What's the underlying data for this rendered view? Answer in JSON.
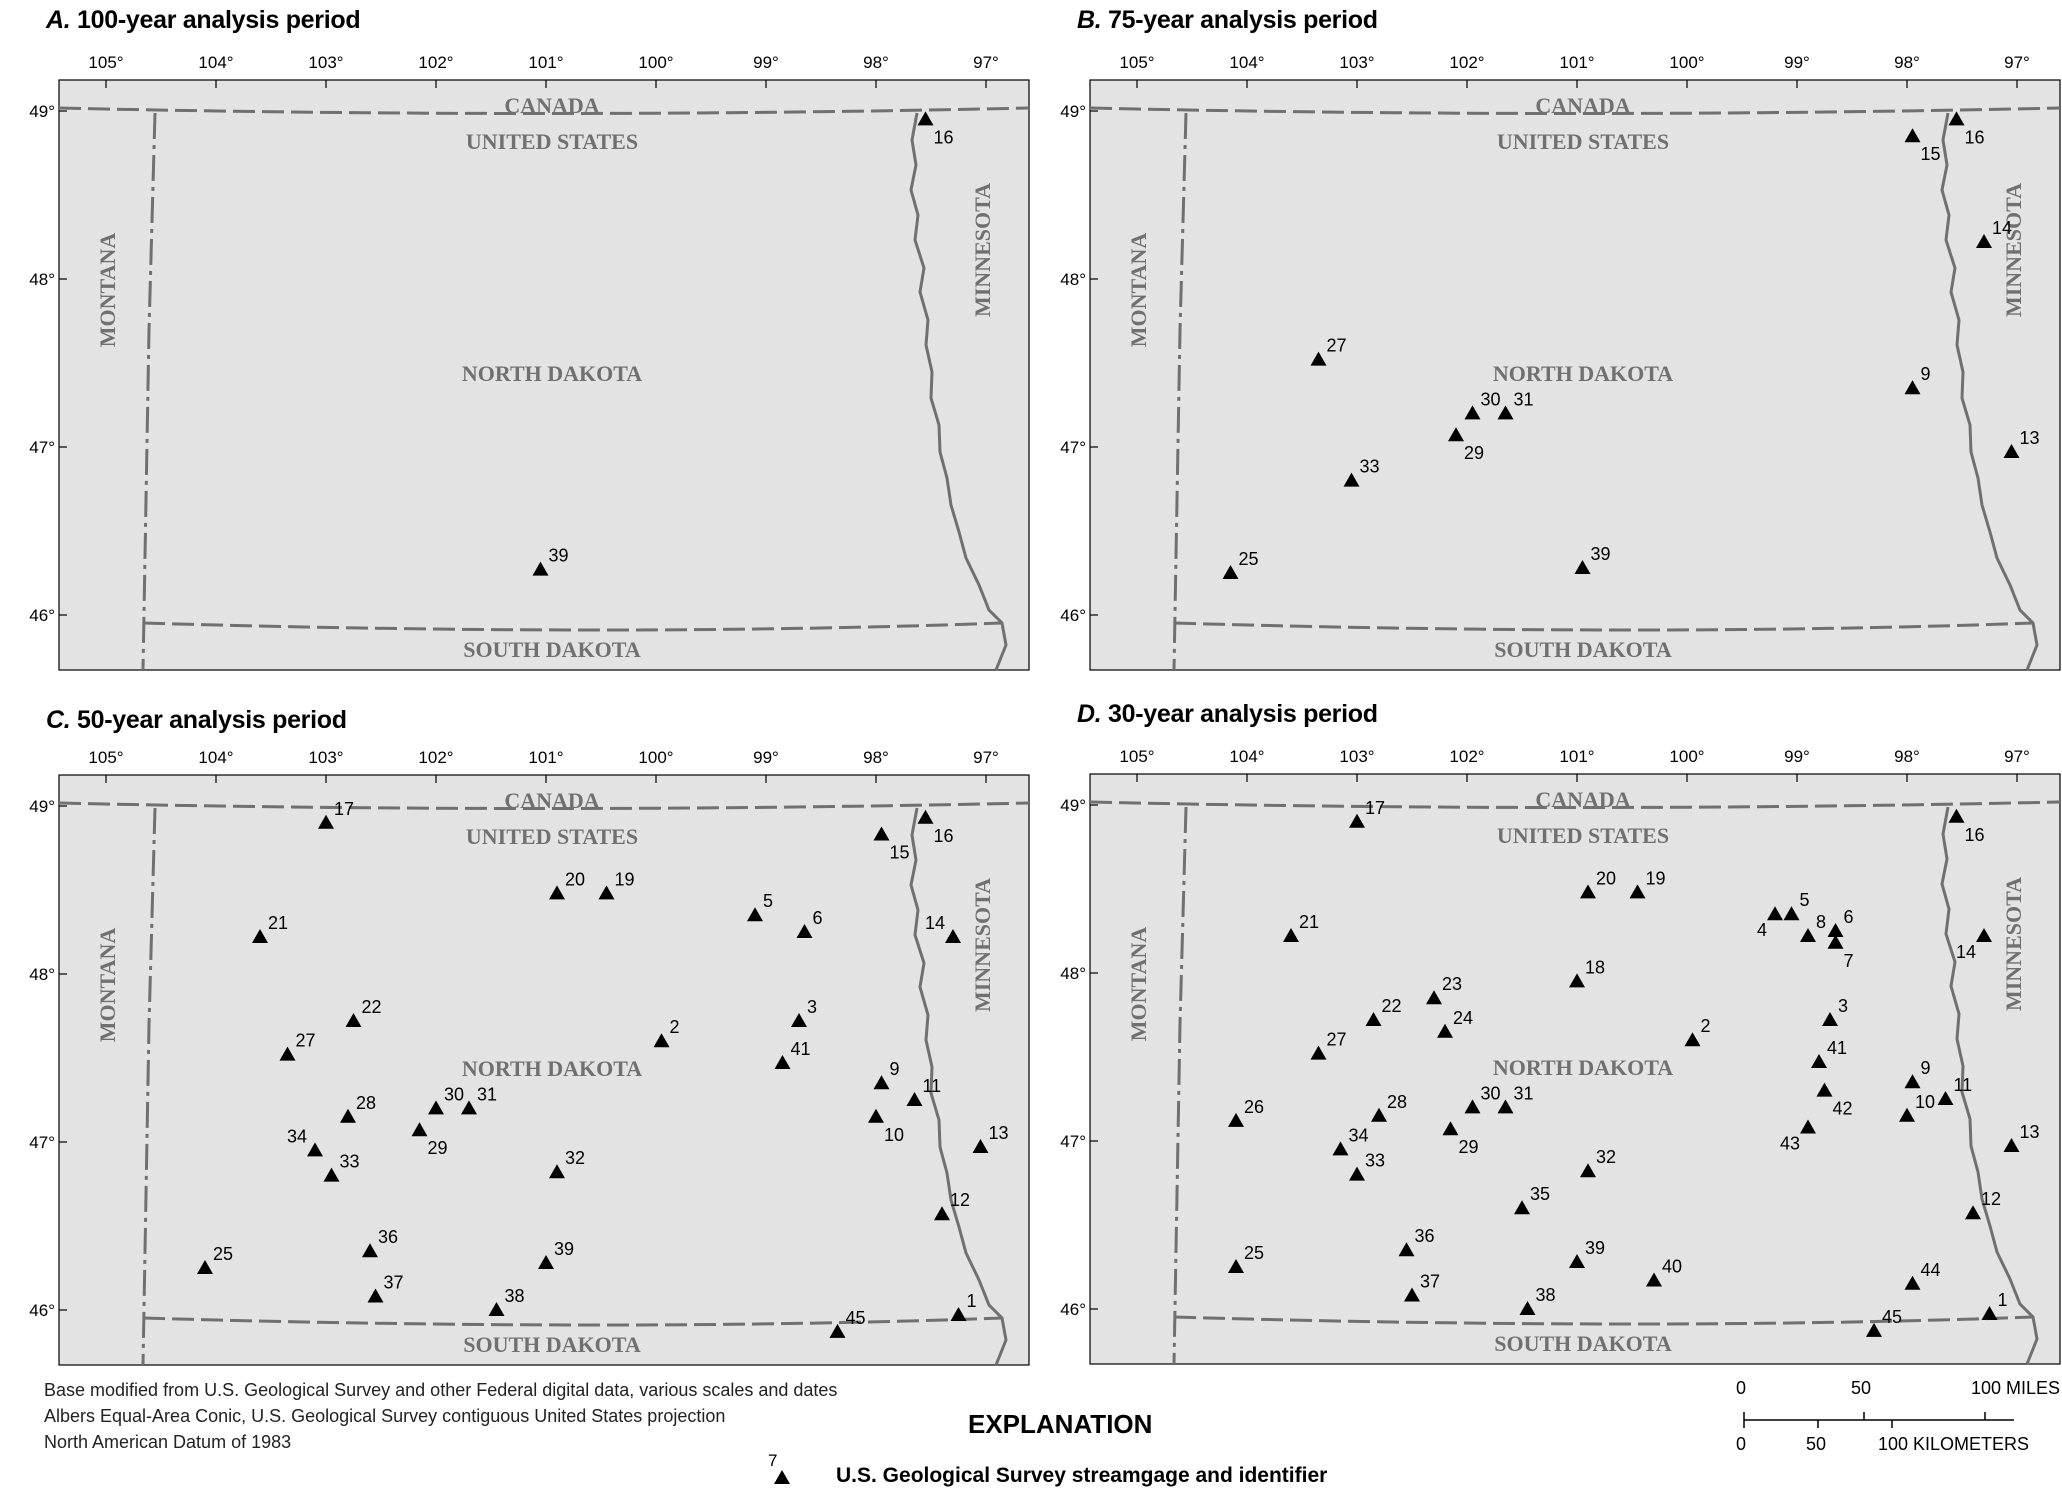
{
  "panels": [
    {
      "letter": "A.",
      "title": "100-year analysis period",
      "gages": [
        {
          "id": "16",
          "lon": -97.55,
          "lat": 48.95,
          "lab": "se"
        },
        {
          "id": "39",
          "lon": -101.05,
          "lat": 46.27,
          "lab": "ne"
        }
      ]
    },
    {
      "letter": "B.",
      "title": "75-year analysis period",
      "gages": [
        {
          "id": "15",
          "lon": -97.95,
          "lat": 48.85,
          "lab": "se"
        },
        {
          "id": "16",
          "lon": -97.55,
          "lat": 48.95,
          "lab": "se"
        },
        {
          "id": "14",
          "lon": -97.3,
          "lat": 48.22,
          "lab": "ne"
        },
        {
          "id": "27",
          "lon": -103.35,
          "lat": 47.52,
          "lab": "ne"
        },
        {
          "id": "9",
          "lon": -97.95,
          "lat": 47.35,
          "lab": "ne"
        },
        {
          "id": "30",
          "lon": -101.95,
          "lat": 47.2,
          "lab": "ne"
        },
        {
          "id": "31",
          "lon": -101.65,
          "lat": 47.2,
          "lab": "ne"
        },
        {
          "id": "29",
          "lon": -102.1,
          "lat": 47.07,
          "lab": "se"
        },
        {
          "id": "13",
          "lon": -97.05,
          "lat": 46.97,
          "lab": "ne"
        },
        {
          "id": "33",
          "lon": -103.05,
          "lat": 46.8,
          "lab": "ne"
        },
        {
          "id": "25",
          "lon": -104.15,
          "lat": 46.25,
          "lab": "ne"
        },
        {
          "id": "39",
          "lon": -100.95,
          "lat": 46.28,
          "lab": "ne"
        }
      ]
    },
    {
      "letter": "C.",
      "title": "50-year analysis period",
      "gages": [
        {
          "id": "17",
          "lon": -103.0,
          "lat": 48.9,
          "lab": "ne"
        },
        {
          "id": "15",
          "lon": -97.95,
          "lat": 48.83,
          "lab": "se"
        },
        {
          "id": "16",
          "lon": -97.55,
          "lat": 48.93,
          "lab": "se"
        },
        {
          "id": "20",
          "lon": -100.9,
          "lat": 48.48,
          "lab": "ne"
        },
        {
          "id": "19",
          "lon": -100.45,
          "lat": 48.48,
          "lab": "ne"
        },
        {
          "id": "5",
          "lon": -99.1,
          "lat": 48.35,
          "lab": "ne"
        },
        {
          "id": "6",
          "lon": -98.65,
          "lat": 48.25,
          "lab": "ne"
        },
        {
          "id": "14",
          "lon": -97.3,
          "lat": 48.22,
          "lab": "nw"
        },
        {
          "id": "21",
          "lon": -103.6,
          "lat": 48.22,
          "lab": "ne"
        },
        {
          "id": "22",
          "lon": -102.75,
          "lat": 47.72,
          "lab": "ne"
        },
        {
          "id": "2",
          "lon": -99.95,
          "lat": 47.6,
          "lab": "ne"
        },
        {
          "id": "3",
          "lon": -98.7,
          "lat": 47.72,
          "lab": "ne"
        },
        {
          "id": "27",
          "lon": -103.35,
          "lat": 47.52,
          "lab": "ne"
        },
        {
          "id": "41",
          "lon": -98.85,
          "lat": 47.47,
          "lab": "ne"
        },
        {
          "id": "9",
          "lon": -97.95,
          "lat": 47.35,
          "lab": "ne"
        },
        {
          "id": "11",
          "lon": -97.65,
          "lat": 47.25,
          "lab": "ne"
        },
        {
          "id": "28",
          "lon": -102.8,
          "lat": 47.15,
          "lab": "ne"
        },
        {
          "id": "30",
          "lon": -102.0,
          "lat": 47.2,
          "lab": "ne"
        },
        {
          "id": "31",
          "lon": -101.7,
          "lat": 47.2,
          "lab": "ne"
        },
        {
          "id": "10",
          "lon": -98.0,
          "lat": 47.15,
          "lab": "se"
        },
        {
          "id": "29",
          "lon": -102.15,
          "lat": 47.07,
          "lab": "se"
        },
        {
          "id": "13",
          "lon": -97.05,
          "lat": 46.97,
          "lab": "ne"
        },
        {
          "id": "34",
          "lon": -103.1,
          "lat": 46.95,
          "lab": "nw"
        },
        {
          "id": "33",
          "lon": -102.95,
          "lat": 46.8,
          "lab": "ne"
        },
        {
          "id": "32",
          "lon": -100.9,
          "lat": 46.82,
          "lab": "ne"
        },
        {
          "id": "12",
          "lon": -97.4,
          "lat": 46.57,
          "lab": "ne"
        },
        {
          "id": "36",
          "lon": -102.6,
          "lat": 46.35,
          "lab": "ne"
        },
        {
          "id": "25",
          "lon": -104.1,
          "lat": 46.25,
          "lab": "ne"
        },
        {
          "id": "39",
          "lon": -101.0,
          "lat": 46.28,
          "lab": "ne"
        },
        {
          "id": "37",
          "lon": -102.55,
          "lat": 46.08,
          "lab": "ne"
        },
        {
          "id": "38",
          "lon": -101.45,
          "lat": 46.0,
          "lab": "ne"
        },
        {
          "id": "1",
          "lon": -97.25,
          "lat": 45.97,
          "lab": "ne"
        },
        {
          "id": "45",
          "lon": -98.35,
          "lat": 45.87,
          "lab": "ne"
        }
      ]
    },
    {
      "letter": "D.",
      "title": "30-year analysis period",
      "gages": [
        {
          "id": "17",
          "lon": -103.0,
          "lat": 48.9,
          "lab": "ne"
        },
        {
          "id": "16",
          "lon": -97.55,
          "lat": 48.93,
          "lab": "se"
        },
        {
          "id": "20",
          "lon": -100.9,
          "lat": 48.48,
          "lab": "ne"
        },
        {
          "id": "19",
          "lon": -100.45,
          "lat": 48.48,
          "lab": "ne"
        },
        {
          "id": "4",
          "lon": -99.2,
          "lat": 48.35,
          "lab": "sw"
        },
        {
          "id": "5",
          "lon": -99.05,
          "lat": 48.35,
          "lab": "ne"
        },
        {
          "id": "8",
          "lon": -98.9,
          "lat": 48.22,
          "lab": "ne"
        },
        {
          "id": "6",
          "lon": -98.65,
          "lat": 48.25,
          "lab": "ne"
        },
        {
          "id": "7",
          "lon": -98.65,
          "lat": 48.18,
          "lab": "se"
        },
        {
          "id": "21",
          "lon": -103.6,
          "lat": 48.22,
          "lab": "ne"
        },
        {
          "id": "14",
          "lon": -97.3,
          "lat": 48.22,
          "lab": "sw"
        },
        {
          "id": "18",
          "lon": -101.0,
          "lat": 47.95,
          "lab": "ne"
        },
        {
          "id": "23",
          "lon": -102.3,
          "lat": 47.85,
          "lab": "ne"
        },
        {
          "id": "22",
          "lon": -102.85,
          "lat": 47.72,
          "lab": "ne"
        },
        {
          "id": "24",
          "lon": -102.2,
          "lat": 47.65,
          "lab": "ne"
        },
        {
          "id": "2",
          "lon": -99.95,
          "lat": 47.6,
          "lab": "ne"
        },
        {
          "id": "3",
          "lon": -98.7,
          "lat": 47.72,
          "lab": "ne"
        },
        {
          "id": "27",
          "lon": -103.35,
          "lat": 47.52,
          "lab": "ne"
        },
        {
          "id": "41",
          "lon": -98.8,
          "lat": 47.47,
          "lab": "ne"
        },
        {
          "id": "9",
          "lon": -97.95,
          "lat": 47.35,
          "lab": "ne"
        },
        {
          "id": "42",
          "lon": -98.75,
          "lat": 47.3,
          "lab": "se"
        },
        {
          "id": "10",
          "lon": -98.0,
          "lat": 47.15,
          "lab": "ne"
        },
        {
          "id": "11",
          "lon": -97.65,
          "lat": 47.25,
          "lab": "ne"
        },
        {
          "id": "26",
          "lon": -104.1,
          "lat": 47.12,
          "lab": "ne"
        },
        {
          "id": "28",
          "lon": -102.8,
          "lat": 47.15,
          "lab": "ne"
        },
        {
          "id": "30",
          "lon": -101.95,
          "lat": 47.2,
          "lab": "ne"
        },
        {
          "id": "31",
          "lon": -101.65,
          "lat": 47.2,
          "lab": "ne"
        },
        {
          "id": "43",
          "lon": -98.9,
          "lat": 47.08,
          "lab": "sw"
        },
        {
          "id": "29",
          "lon": -102.15,
          "lat": 47.07,
          "lab": "se"
        },
        {
          "id": "13",
          "lon": -97.05,
          "lat": 46.97,
          "lab": "ne"
        },
        {
          "id": "34",
          "lon": -103.15,
          "lat": 46.95,
          "lab": "ne"
        },
        {
          "id": "33",
          "lon": -103.0,
          "lat": 46.8,
          "lab": "ne"
        },
        {
          "id": "32",
          "lon": -100.9,
          "lat": 46.82,
          "lab": "ne"
        },
        {
          "id": "35",
          "lon": -101.5,
          "lat": 46.6,
          "lab": "ne"
        },
        {
          "id": "12",
          "lon": -97.4,
          "lat": 46.57,
          "lab": "ne"
        },
        {
          "id": "36",
          "lon": -102.55,
          "lat": 46.35,
          "lab": "ne"
        },
        {
          "id": "25",
          "lon": -104.1,
          "lat": 46.25,
          "lab": "ne"
        },
        {
          "id": "39",
          "lon": -101.0,
          "lat": 46.28,
          "lab": "ne"
        },
        {
          "id": "40",
          "lon": -100.3,
          "lat": 46.17,
          "lab": "ne"
        },
        {
          "id": "44",
          "lon": -97.95,
          "lat": 46.15,
          "lab": "ne"
        },
        {
          "id": "37",
          "lon": -102.5,
          "lat": 46.08,
          "lab": "ne"
        },
        {
          "id": "38",
          "lon": -101.45,
          "lat": 46.0,
          "lab": "ne"
        },
        {
          "id": "1",
          "lon": -97.25,
          "lat": 45.97,
          "lab": "ne"
        },
        {
          "id": "45",
          "lon": -98.3,
          "lat": 45.87,
          "lab": "ne"
        }
      ]
    }
  ],
  "lon_ticks": [
    {
      "lon": -105,
      "label": "105°"
    },
    {
      "lon": -104,
      "label": "104°"
    },
    {
      "lon": -103,
      "label": "103°"
    },
    {
      "lon": -102,
      "label": "102°"
    },
    {
      "lon": -101,
      "label": "101°"
    },
    {
      "lon": -100,
      "label": "100°"
    },
    {
      "lon": -99,
      "label": "99°"
    },
    {
      "lon": -98,
      "label": "98°"
    },
    {
      "lon": -97,
      "label": "97°"
    }
  ],
  "lat_ticks": [
    {
      "lat": 49,
      "label": "49°"
    },
    {
      "lat": 48,
      "label": "48°"
    },
    {
      "lat": 47,
      "label": "47°"
    },
    {
      "lat": 46,
      "label": "46°"
    }
  ],
  "place_labels": {
    "canada": "CANADA",
    "united_states": "UNITED STATES",
    "north_dakota": "NORTH DAKOTA",
    "south_dakota": "SOUTH DAKOTA",
    "montana": "MONTANA",
    "minnesota": "MINNESOTA"
  },
  "footer": {
    "line1": "Base modified from U.S. Geological Survey and other Federal digital data, various scales and dates",
    "line2": "Albers Equal-Area Conic, U.S. Geological Survey contiguous United States projection",
    "line3": "North American Datum of 1983"
  },
  "explanation": {
    "title": "EXPLANATION",
    "example_id": "7",
    "symbol_label": "U.S. Geological Survey streamgage and identifier"
  },
  "scale": {
    "miles": [
      "0",
      "50",
      "100 MILES"
    ],
    "km": [
      "0",
      "50",
      "100 KILOMETERS"
    ]
  },
  "colors": {
    "land": "#e3e3e3",
    "border": "#707070",
    "label": "#707070"
  }
}
